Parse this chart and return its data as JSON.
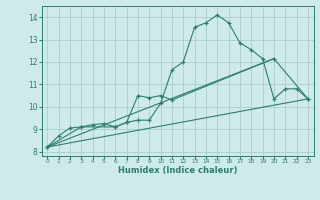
{
  "xlabel": "Humidex (Indice chaleur)",
  "ylabel": "",
  "background_color": "#ceeaea",
  "grid_color": "#aacfcf",
  "line_color": "#2e7d6e",
  "xlim": [
    -0.5,
    23.5
  ],
  "ylim": [
    7.8,
    14.5
  ],
  "yticks": [
    8,
    9,
    10,
    11,
    12,
    13,
    14
  ],
  "xticks": [
    0,
    1,
    2,
    3,
    4,
    5,
    6,
    7,
    8,
    9,
    10,
    11,
    12,
    13,
    14,
    15,
    16,
    17,
    18,
    19,
    20,
    21,
    22,
    23
  ],
  "lines": [
    {
      "x": [
        0,
        1,
        2,
        3,
        4,
        5,
        6,
        7,
        8,
        9,
        10,
        11,
        12,
        13,
        14,
        15,
        16,
        17,
        18,
        19,
        20,
        21,
        22,
        23
      ],
      "y": [
        8.2,
        8.7,
        9.05,
        9.1,
        9.2,
        9.25,
        9.1,
        9.3,
        9.4,
        9.4,
        10.15,
        11.65,
        12.0,
        13.55,
        13.75,
        14.1,
        13.75,
        12.85,
        12.55,
        12.15,
        10.35,
        10.8,
        10.8,
        10.35
      ],
      "has_markers": true
    },
    {
      "x": [
        0,
        3,
        6,
        7,
        8,
        9,
        10,
        11,
        20,
        23
      ],
      "y": [
        8.2,
        9.1,
        9.1,
        9.3,
        10.5,
        10.4,
        10.5,
        10.3,
        12.15,
        10.35
      ],
      "has_markers": true
    },
    {
      "x": [
        0,
        23
      ],
      "y": [
        8.2,
        10.35
      ],
      "has_markers": false
    },
    {
      "x": [
        0,
        20
      ],
      "y": [
        8.2,
        12.15
      ],
      "has_markers": false
    }
  ]
}
